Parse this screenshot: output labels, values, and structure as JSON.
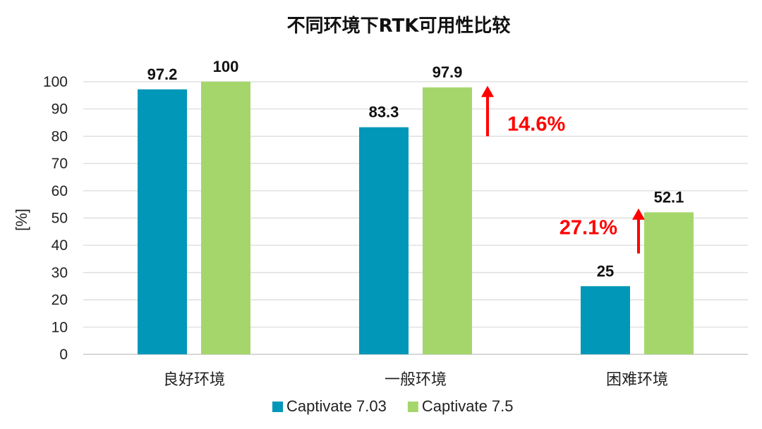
{
  "chart_data": {
    "type": "bar",
    "title": "不同环境下RTK可用性比较",
    "xlabel": "",
    "ylabel": "[%]",
    "ylim": [
      0,
      100
    ],
    "yticks": [
      0,
      10,
      20,
      30,
      40,
      50,
      60,
      70,
      80,
      90,
      100
    ],
    "grid": true,
    "legend_position": "bottom",
    "categories": [
      "良好环境",
      "一般环境",
      "困难环境"
    ],
    "series": [
      {
        "name": "Captivate 7.03",
        "color": "#0097b8",
        "values": [
          97.2,
          83.3,
          25
        ],
        "labels": [
          "97.2",
          "83.3",
          "25"
        ]
      },
      {
        "name": "Captivate 7.5",
        "color": "#a5d66b",
        "values": [
          100,
          97.9,
          52.1
        ],
        "labels": [
          "100",
          "97.9",
          "52.1"
        ]
      }
    ],
    "annotations": [
      {
        "text": "14.6%",
        "category_index": 1,
        "color": "#ff0000",
        "icon": "up-arrow-icon"
      },
      {
        "text": "27.1%",
        "category_index": 2,
        "color": "#ff0000",
        "icon": "up-arrow-icon"
      }
    ]
  }
}
